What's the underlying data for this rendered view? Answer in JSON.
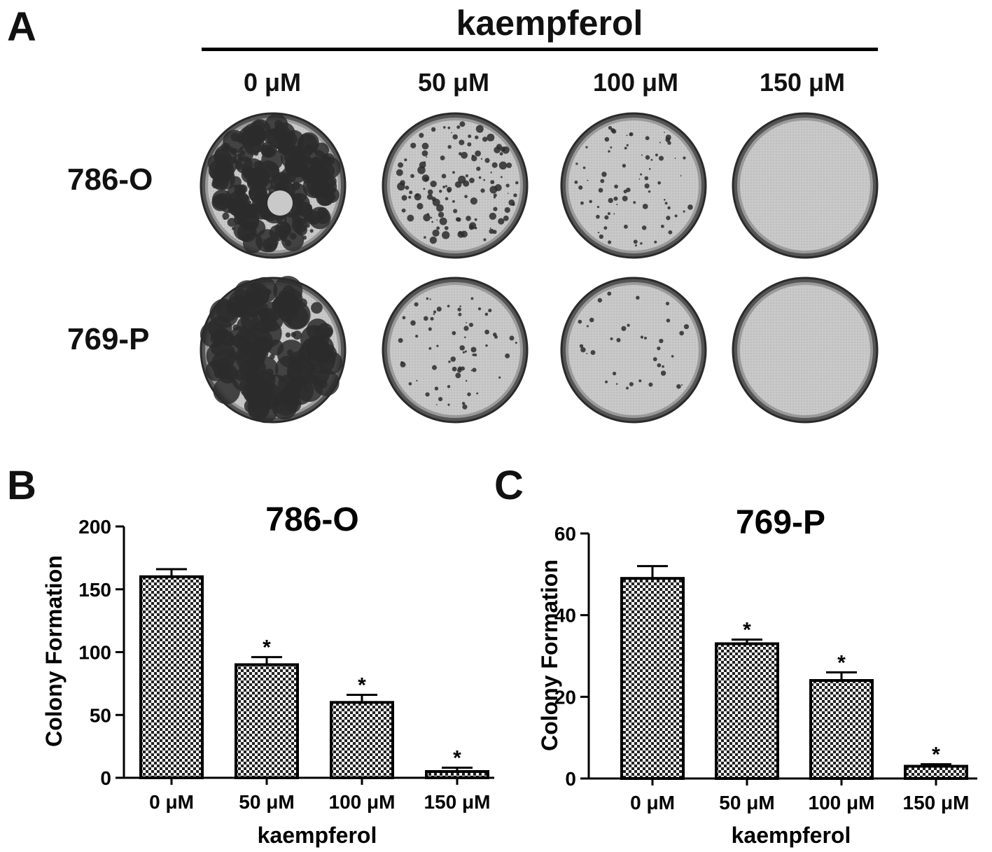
{
  "panel_a": {
    "letter": "A",
    "treatment": "kaempferol",
    "concentrations": [
      "0 μM",
      "50 μM",
      "100 μM",
      "150 μM"
    ],
    "cell_lines": [
      "786-O",
      "769-P"
    ],
    "colony_density": [
      [
        0.9,
        0.42,
        0.22,
        0.0
      ],
      [
        0.55,
        0.18,
        0.06,
        0.0
      ]
    ]
  },
  "panel_b": {
    "letter": "B"
  },
  "panel_c": {
    "letter": "C"
  },
  "chart_data": [
    {
      "type": "bar",
      "title": "786-O",
      "categories": [
        "0 μM",
        "50 μM",
        "100 μM",
        "150 μM"
      ],
      "values": [
        160,
        90,
        60,
        5
      ],
      "errors": [
        6,
        6,
        6,
        3
      ],
      "significance": [
        "",
        "*",
        "*",
        "*"
      ],
      "xlabel": "kaempferol",
      "ylabel": "Colony Formation",
      "ylim": [
        0,
        200
      ],
      "yticks": [
        0,
        50,
        100,
        150,
        200
      ],
      "grid": false
    },
    {
      "type": "bar",
      "title": "769-P",
      "categories": [
        "0 μM",
        "50 μM",
        "100 μM",
        "150 μM"
      ],
      "values": [
        49,
        33,
        24,
        3
      ],
      "errors": [
        3,
        1,
        2,
        0.5
      ],
      "significance": [
        "",
        "*",
        "*",
        "*"
      ],
      "xlabel": "kaempferol",
      "ylabel": "Colony Formation",
      "ylim": [
        0,
        60
      ],
      "yticks": [
        0,
        20,
        40,
        60
      ],
      "grid": false
    }
  ]
}
